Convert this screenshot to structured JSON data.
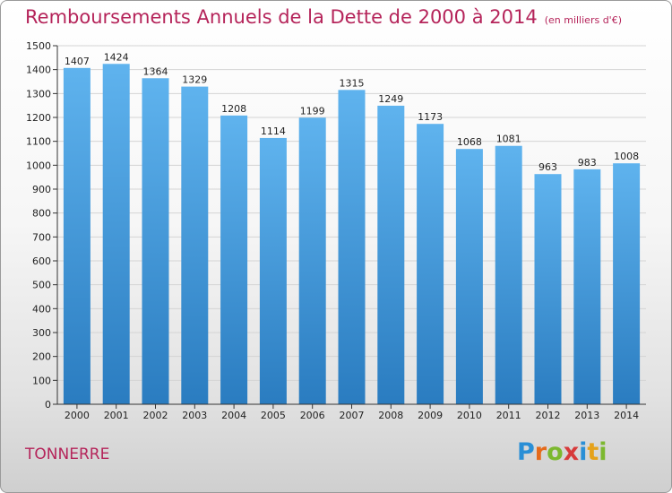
{
  "header": {
    "title": "Remboursements Annuels de la Dette de 2000 à 2014",
    "unit": "(en milliers d'€)"
  },
  "footer": {
    "city": "TONNERRE",
    "logo": [
      "P",
      "r",
      "o",
      "x",
      "i",
      "t",
      "i"
    ]
  },
  "chart_data": {
    "type": "bar",
    "title": "Remboursements Annuels de la Dette de 2000 à 2014",
    "subtitle": "(en milliers d'€)",
    "xlabel": "",
    "ylabel": "",
    "categories": [
      "2000",
      "2001",
      "2002",
      "2003",
      "2004",
      "2005",
      "2006",
      "2007",
      "2008",
      "2009",
      "2010",
      "2011",
      "2012",
      "2013",
      "2014"
    ],
    "values": [
      1407,
      1424,
      1364,
      1329,
      1208,
      1114,
      1199,
      1315,
      1249,
      1173,
      1068,
      1081,
      963,
      983,
      1008
    ],
    "ylim": [
      0,
      1500
    ],
    "yticks": [
      0,
      100,
      200,
      300,
      400,
      500,
      600,
      700,
      800,
      900,
      1000,
      1100,
      1200,
      1300,
      1400,
      1500
    ],
    "grid": true,
    "legend": "none",
    "colors": {
      "bar_light": "#5aaeea",
      "bar_dark": "#2a7cc0",
      "title": "#b5245a"
    }
  }
}
